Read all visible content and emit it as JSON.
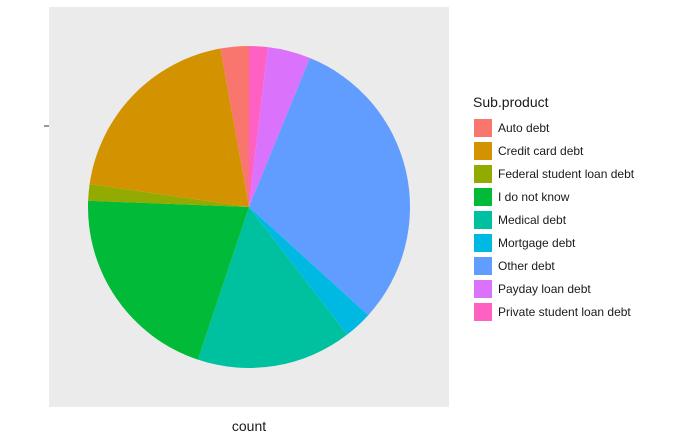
{
  "chart_data": {
    "type": "pie",
    "title": "",
    "xlabel": "count",
    "ylabel": "",
    "legend_title": "Sub.product",
    "legend_position": "right",
    "background": "#EBEBEB",
    "categories": [
      "Auto debt",
      "Credit card debt",
      "Federal student loan debt",
      "I do not know",
      "Medical debt",
      "Mortgage debt",
      "Other debt",
      "Payday loan debt",
      "Private student loan debt"
    ],
    "values": [
      2.9,
      20.3,
      1.7,
      20.9,
      15.9,
      2.9,
      31.2,
      4.4,
      1.9
    ],
    "colors": [
      "#F8766D",
      "#D39200",
      "#93AA00",
      "#00BA38",
      "#00C19F",
      "#00B9E3",
      "#619CFF",
      "#DB72FB",
      "#FF61C3"
    ]
  }
}
